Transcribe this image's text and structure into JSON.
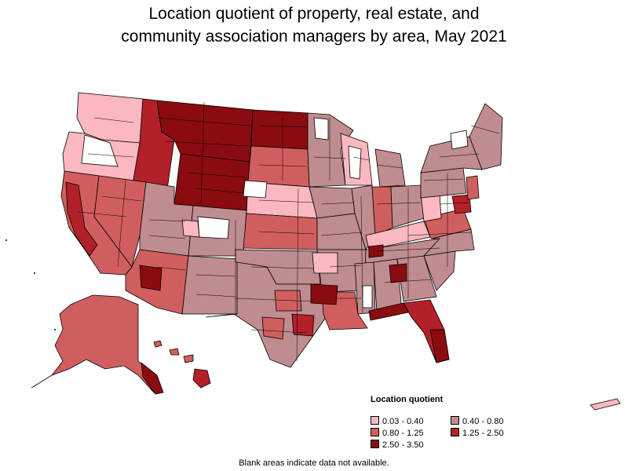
{
  "title": {
    "line1": "Location quotient of property, real estate, and",
    "line2": "community association managers by area, May 2021"
  },
  "legend": {
    "title": "Location quotient",
    "items": [
      {
        "label": "0.03 - 0.40",
        "color": "#fbb8c0"
      },
      {
        "label": "0.40 - 0.80",
        "color": "#bf8c8f"
      },
      {
        "label": "0.80 - 1.25",
        "color": "#d15e5e"
      },
      {
        "label": "1.25 - 2.50",
        "color": "#b22029"
      },
      {
        "label": "2.50 - 3.50",
        "color": "#8a0c10"
      }
    ]
  },
  "footnote": "Blank areas indicate data not available.",
  "colors": {
    "border": "#000000",
    "blank": "#ffffff",
    "lq_0_03_0_40": "#fbb8c0",
    "lq_0_40_0_80": "#bf8c8f",
    "lq_0_80_1_25": "#d15e5e",
    "lq_1_25_2_50": "#b22029",
    "lq_2_50_3_50": "#8a0c10"
  }
}
